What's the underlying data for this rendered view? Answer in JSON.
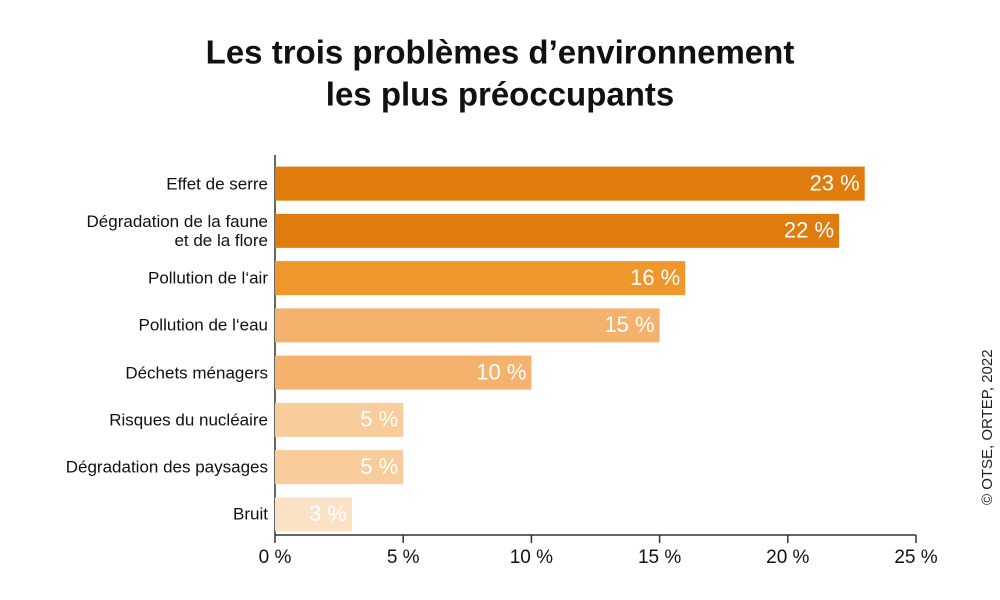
{
  "chart_data": {
    "type": "bar",
    "orientation": "horizontal",
    "title": [
      "Les trois problèmes d’environnement",
      "les plus préoccupants"
    ],
    "categories": [
      "Effet de serre",
      "Dégradation de la faune\net de la flore",
      "Pollution de l‘air",
      "Pollution de l‘eau",
      "Déchets ménagers",
      "Risques du nucléaire",
      "Dégradation des paysages",
      "Bruit"
    ],
    "values": [
      23,
      22,
      16,
      15,
      10,
      5,
      5,
      3
    ],
    "value_labels": [
      "23 %",
      "22 %",
      "16 %",
      "15 %",
      "10 %",
      "5 %",
      "5 %",
      "3 %"
    ],
    "colors": [
      "#e07b0e",
      "#e07b0e",
      "#f0972c",
      "#f4b26d",
      "#f4b26d",
      "#f8cd9b",
      "#f8cd9b",
      "#fbe2c7"
    ],
    "xlim": [
      0,
      25
    ],
    "xticks": [
      {
        "value": 0,
        "label": "0 %"
      },
      {
        "value": 5,
        "label": "5 %"
      },
      {
        "value": 10,
        "label": "10 %"
      },
      {
        "value": 15,
        "label": "15 %"
      },
      {
        "value": 20,
        "label": "20 %"
      },
      {
        "value": 25,
        "label": "25 %"
      }
    ],
    "source": "© OTSE, ORTEP, 2022"
  }
}
